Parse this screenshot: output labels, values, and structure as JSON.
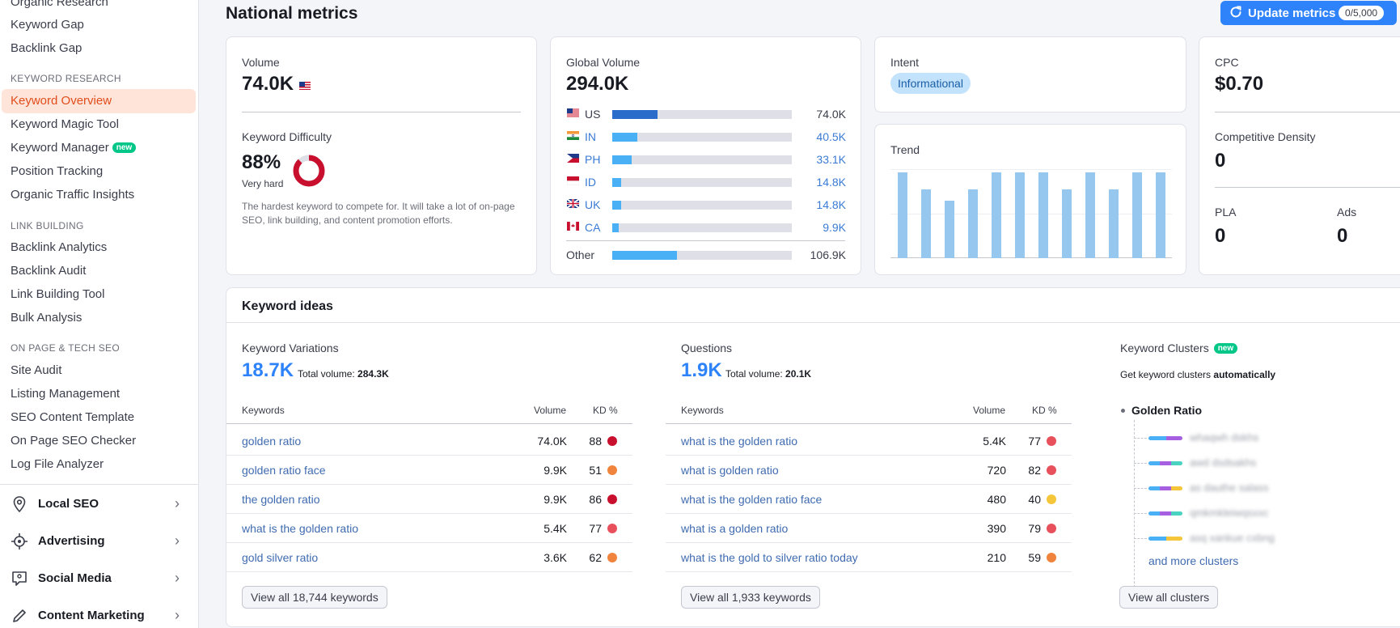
{
  "sidebar": {
    "top_items": [
      "Organic Research",
      "Keyword Gap",
      "Backlink Gap"
    ],
    "sections": [
      {
        "title": "KEYWORD RESEARCH",
        "items": [
          "Keyword Overview",
          "Keyword Magic Tool",
          "Keyword Manager",
          "Position Tracking",
          "Organic Traffic Insights"
        ]
      },
      {
        "title": "LINK BUILDING",
        "items": [
          "Backlink Analytics",
          "Backlink Audit",
          "Link Building Tool",
          "Bulk Analysis"
        ]
      },
      {
        "title": "ON PAGE & TECH SEO",
        "items": [
          "Site Audit",
          "Listing Management",
          "SEO Content Template",
          "On Page SEO Checker",
          "Log File Analyzer"
        ]
      }
    ],
    "new_badge": "new",
    "groups": [
      "Local SEO",
      "Advertising",
      "Social Media",
      "Content Marketing"
    ]
  },
  "header": {
    "title": "National metrics",
    "update_label": "Update metrics",
    "update_counter": "0/5,000"
  },
  "volume": {
    "label": "Volume",
    "value": "74.0K"
  },
  "difficulty": {
    "label": "Keyword Difficulty",
    "value": "88%",
    "percent": 88,
    "level": "Very hard",
    "description": "The hardest keyword to compete for. It will take a lot of on-page SEO, link building, and content promotion efforts."
  },
  "global_volume": {
    "label": "Global Volume",
    "value": "294.0K",
    "rows": [
      {
        "code": "US",
        "value": "74.0K",
        "fill": 0.25
      },
      {
        "code": "IN",
        "value": "40.5K",
        "fill": 0.14
      },
      {
        "code": "PH",
        "value": "33.1K",
        "fill": 0.11
      },
      {
        "code": "ID",
        "value": "14.8K",
        "fill": 0.05
      },
      {
        "code": "UK",
        "value": "14.8K",
        "fill": 0.05
      },
      {
        "code": "CA",
        "value": "9.9K",
        "fill": 0.035
      }
    ],
    "other": {
      "label": "Other",
      "value": "106.9K",
      "fill": 0.36
    }
  },
  "intent": {
    "label": "Intent",
    "value": "Informational"
  },
  "trend": {
    "label": "Trend",
    "values": [
      1.0,
      0.8,
      0.67,
      0.8,
      1.0,
      1.0,
      1.0,
      0.8,
      1.0,
      0.8,
      1.0,
      1.0
    ]
  },
  "cpc": {
    "label": "CPC",
    "value": "$0.70",
    "density_label": "Competitive Density",
    "density_value": "0",
    "pla_label": "PLA",
    "pla_value": "0",
    "ads_label": "Ads",
    "ads_value": "0"
  },
  "keyword_ideas": {
    "title": "Keyword ideas",
    "variations": {
      "title": "Keyword Variations",
      "count": "18.7K",
      "total_label": "Total volume:",
      "total_value": "284.3K",
      "headers": {
        "keywords": "Keywords",
        "volume": "Volume",
        "kd": "KD %"
      },
      "rows": [
        {
          "keyword": "golden ratio",
          "volume": "74.0K",
          "kd": "88",
          "color": "#c8102e"
        },
        {
          "keyword": "golden ratio face",
          "volume": "9.9K",
          "kd": "51",
          "color": "#f0843c"
        },
        {
          "keyword": "the golden ratio",
          "volume": "9.9K",
          "kd": "86",
          "color": "#c8102e"
        },
        {
          "keyword": "what is the golden ratio",
          "volume": "5.4K",
          "kd": "77",
          "color": "#e8505b"
        },
        {
          "keyword": "gold silver ratio",
          "volume": "3.6K",
          "kd": "62",
          "color": "#f0843c"
        }
      ],
      "view_all": "View all 18,744 keywords"
    },
    "questions": {
      "title": "Questions",
      "count": "1.9K",
      "total_label": "Total volume:",
      "total_value": "20.1K",
      "headers": {
        "keywords": "Keywords",
        "volume": "Volume",
        "kd": "KD %"
      },
      "rows": [
        {
          "keyword": "what is the golden ratio",
          "volume": "5.4K",
          "kd": "77",
          "color": "#e8505b"
        },
        {
          "keyword": "what is golden ratio",
          "volume": "720",
          "kd": "82",
          "color": "#e8505b"
        },
        {
          "keyword": "what is the golden ratio face",
          "volume": "480",
          "kd": "40",
          "color": "#f5c53a"
        },
        {
          "keyword": "what is a golden ratio",
          "volume": "390",
          "kd": "79",
          "color": "#e8505b"
        },
        {
          "keyword": "what is the gold to silver ratio today",
          "volume": "210",
          "kd": "59",
          "color": "#f0843c"
        }
      ],
      "view_all": "View all 1,933 keywords"
    },
    "clusters": {
      "title": "Keyword Clusters",
      "badge": "new",
      "subtitle_prefix": "Get keyword clusters",
      "subtitle_bold": "automatically",
      "root": "Golden Ratio",
      "items": [
        "whaqwh dskhs",
        "awd dsdsakhs",
        "as dauthe salass",
        "qmkmkleiwqsxxc",
        "asq xankue cxbng"
      ],
      "more": "and more clusters",
      "view_all": "View all clusters"
    }
  },
  "colors": {
    "accent": "#2f83fa",
    "active_nav": "#e04d1b",
    "kd_ring": "#c8102e"
  }
}
